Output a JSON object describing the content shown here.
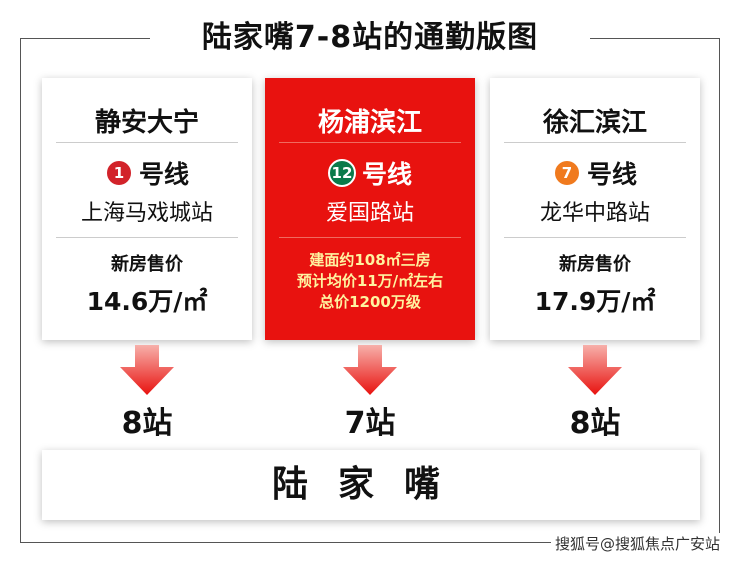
{
  "title": "陆家嘴7-8站的通勤版图",
  "cards": [
    {
      "name": "静安大宁",
      "line_number": "1",
      "line_label": "号线",
      "line_color": "#d2232a",
      "station": "上海马戏城站",
      "price_label": "新房售价",
      "price": "14.6万/㎡",
      "stops": "8站"
    },
    {
      "name": "杨浦滨江",
      "line_number": "12",
      "line_label": "号线",
      "line_color": "#0b7a4a",
      "station": "爱国路站",
      "details": [
        "建面约108㎡三房",
        "预计均价11万/㎡左右",
        "总价1200万级"
      ],
      "stops": "7站"
    },
    {
      "name": "徐汇滨江",
      "line_number": "7",
      "line_label": "号线",
      "line_color": "#f07a1e",
      "station": "龙华中路站",
      "price_label": "新房售价",
      "price": "17.9万/㎡",
      "stops": "8站"
    }
  ],
  "destination": "陆家嘴",
  "watermark": "搜狐号@搜狐焦点广安站",
  "colors": {
    "highlight": "#e8120f",
    "arrow": "#e8120f"
  }
}
